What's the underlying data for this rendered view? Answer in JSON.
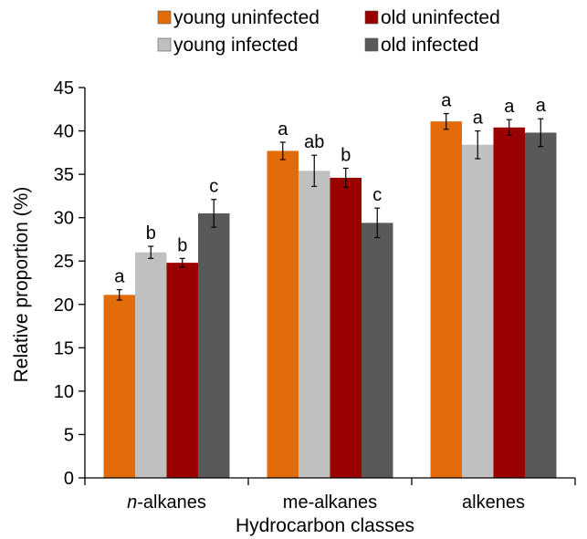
{
  "chart_data": {
    "type": "bar",
    "xlabel": "Hydrocarbon classes",
    "ylabel": "Relative proportion (%)",
    "ylim": [
      0,
      45
    ],
    "yticks": [
      0,
      5,
      10,
      15,
      20,
      25,
      30,
      35,
      40,
      45
    ],
    "grid": false,
    "legend_position": "top",
    "categories": [
      {
        "prefix": "n",
        "suffix": "-alkanes",
        "italic_prefix": true
      },
      {
        "prefix": "",
        "suffix": "me-alkanes",
        "italic_prefix": false
      },
      {
        "prefix": "",
        "suffix": "alkenes",
        "italic_prefix": false
      }
    ],
    "series": [
      {
        "name": "young uninfected",
        "color": "#e36c0a",
        "values": [
          21.1,
          37.7,
          41.1
        ],
        "errors": [
          0.6,
          1.0,
          0.9
        ],
        "letters": [
          "a",
          "a",
          "a"
        ]
      },
      {
        "name": "young infected",
        "color": "#c0c0c0",
        "values": [
          26.0,
          35.4,
          38.4
        ],
        "errors": [
          0.7,
          1.8,
          1.6
        ],
        "letters": [
          "b",
          "ab",
          "a"
        ]
      },
      {
        "name": "old uninfected",
        "color": "#990000",
        "values": [
          24.8,
          34.6,
          40.4
        ],
        "errors": [
          0.5,
          1.1,
          0.9
        ],
        "letters": [
          "b",
          "b",
          "a"
        ]
      },
      {
        "name": "old infected",
        "color": "#595959",
        "values": [
          30.5,
          29.4,
          39.8
        ],
        "errors": [
          1.6,
          1.7,
          1.6
        ],
        "letters": [
          "c",
          "c",
          "a"
        ]
      }
    ]
  }
}
